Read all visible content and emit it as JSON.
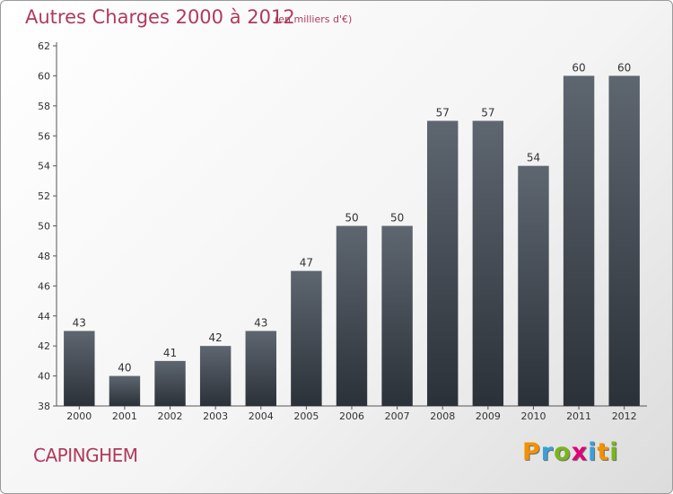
{
  "header": {
    "title": "Autres Charges 2000 à 2012",
    "subtitle": "(en milliers d'€)"
  },
  "footer": {
    "commune": "CAPINGHEM",
    "logo": {
      "text": "Proxiti",
      "letters": [
        {
          "ch": "P",
          "color": "#f39200"
        },
        {
          "ch": "r",
          "color": "#3aa0d8"
        },
        {
          "ch": "o",
          "color": "#7ab51d"
        },
        {
          "ch": "x",
          "color": "#e2007a"
        },
        {
          "ch": "i",
          "color": "#3aa0d8"
        },
        {
          "ch": "t",
          "color": "#f39200"
        },
        {
          "ch": "i",
          "color": "#7ab51d"
        }
      ]
    }
  },
  "colors": {
    "bar_top": "#5e6670",
    "bar_bottom": "#2b3138",
    "text_accent": "#b03a5b"
  },
  "chart_data": {
    "type": "bar",
    "title": "Autres Charges 2000 à 2012",
    "subtitle": "(en milliers d'€)",
    "categories": [
      "2000",
      "2001",
      "2002",
      "2003",
      "2004",
      "2005",
      "2006",
      "2007",
      "2008",
      "2009",
      "2010",
      "2011",
      "2012"
    ],
    "values": [
      43,
      40,
      41,
      42,
      43,
      47,
      50,
      50,
      57,
      57,
      54,
      60,
      60
    ],
    "ylim": [
      38,
      62
    ],
    "yticks": [
      38,
      40,
      42,
      44,
      46,
      48,
      50,
      52,
      54,
      56,
      58,
      60,
      62
    ],
    "xlabel": "",
    "ylabel": "",
    "grid": false,
    "data_labels": true
  }
}
